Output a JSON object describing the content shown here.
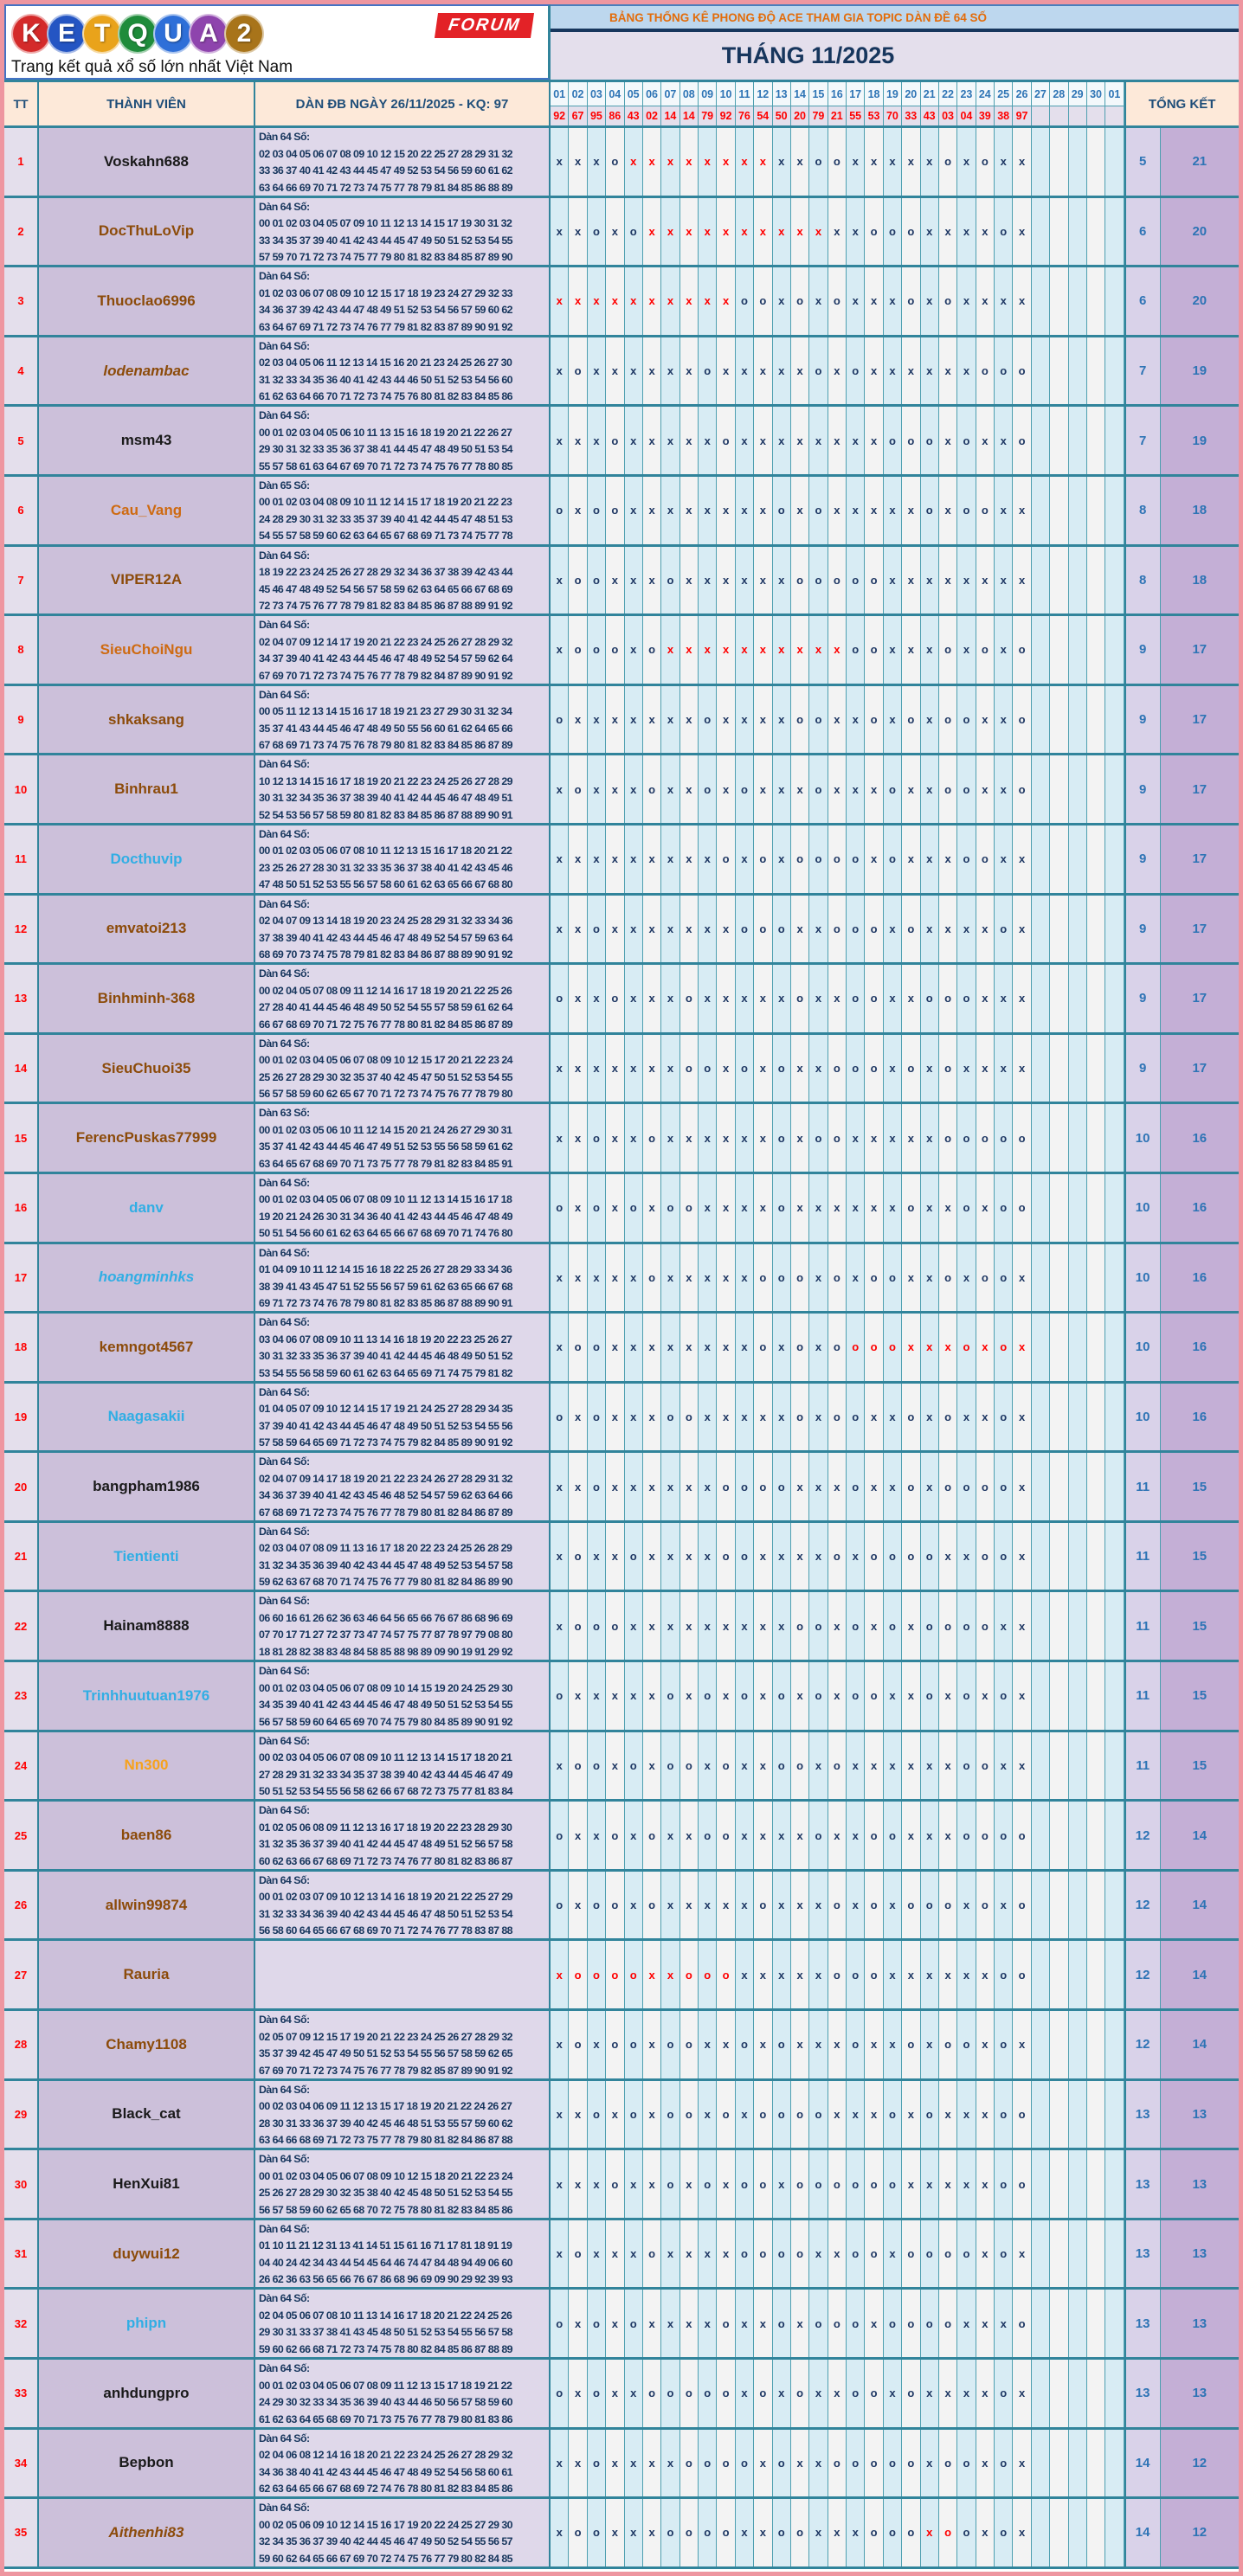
{
  "logo": {
    "letters": [
      {
        "ch": "K",
        "color": "#d42a2a"
      },
      {
        "ch": "E",
        "color": "#2455c3"
      },
      {
        "ch": "T",
        "color": "#e9a31b"
      },
      {
        "ch": "Q",
        "color": "#1f8c3b"
      },
      {
        "ch": "U",
        "color": "#2e6fd8"
      },
      {
        "ch": "A",
        "color": "#8e44ad"
      },
      {
        "ch": "2",
        "color": "#a8741a"
      }
    ],
    "forum_label": "FORUM",
    "tagline": "Trang kết quả xổ số lớn nhất Việt Nam"
  },
  "banner": {
    "title": "BẢNG THỐNG KÊ PHONG ĐỘ ACE THAM GIA TOPIC DÀN ĐỀ 64 SỐ",
    "month": "THÁNG 11/2025"
  },
  "table": {
    "tt_header": "TT",
    "member_header": "THÀNH VIÊN",
    "dan_header": "DÀN ĐB NGÀY 26/11/2025 - KQ: 97",
    "total_header": "TỔNG KẾT",
    "day_columns": [
      "01",
      "02",
      "03",
      "04",
      "05",
      "06",
      "07",
      "08",
      "09",
      "10",
      "11",
      "12",
      "13",
      "14",
      "15",
      "16",
      "17",
      "18",
      "19",
      "20",
      "21",
      "22",
      "23",
      "24",
      "25",
      "26",
      "27",
      "28",
      "29",
      "30",
      "01"
    ],
    "day_results": [
      "92",
      "67",
      "95",
      "86",
      "43",
      "02",
      "14",
      "14",
      "79",
      "92",
      "76",
      "54",
      "50",
      "20",
      "79",
      "21",
      "55",
      "53",
      "70",
      "33",
      "43",
      "03",
      "04",
      "39",
      "38",
      "97",
      "",
      "",
      "",
      "",
      ""
    ],
    "rows": [
      {
        "tt": "1",
        "name": "Voskahn688",
        "style": "black",
        "italic": false,
        "dan_title": "Dàn 64 Số:",
        "lines": [
          "02 03 04 05 06 07 08 09 10 12 15 20 22 25 27 28 29 31 32",
          "33 36 37 40 41 42 43 44 45 47 49 52 53 54 56 59 60 61 62",
          "63 64 66 69 70 71 72 73 74 75 77 78 79 81 84 85 86 88 89",
          "90 94 95 96 97 98 99"
        ],
        "marks": "xxxoXXXXXXXXxxooxxxxxoxoxx",
        "miss": "5",
        "hit": "21"
      },
      {
        "tt": "2",
        "name": "DocThuLoVip",
        "style": "brown",
        "italic": false,
        "dan_title": "Dàn 64 Số:",
        "lines": [
          "00 01 02 03 04 05 07 09 10 11 12 13 14 15 17 19 30 31 32",
          "33 34 35 37 39 40 41 42 43 44 45 47 49 50 51 52 53 54 55",
          "57 59 70 71 72 73 74 75 77 79 80 81 82 83 84 85 87 89 90",
          "91 92 93 94 95 97 99"
        ],
        "marks": "xxoxoXXXXXXXXXXxxoooxxxxox",
        "miss": "6",
        "hit": "20"
      },
      {
        "tt": "3",
        "name": "Thuoclao6996",
        "style": "brown",
        "italic": false,
        "dan_title": "Dàn 64 Số:",
        "lines": [
          "01 02 03 06 07 08 09 10 12 15 17 18 19 23 24 27 29 32 33",
          "34 36 37 39 42 43 44 47 48 49 51 52 53 54 56 57 59 60 62",
          "63 64 67 69 71 72 73 74 76 77 79 81 82 83 87 89 90 91 92",
          "93 94 95 96 97 98 99"
        ],
        "marks": "XXXXXXXXXXooxoxoxxxoxoxxxx",
        "miss": "6",
        "hit": "20"
      },
      {
        "tt": "4",
        "name": "lodenambac",
        "style": "brown",
        "italic": true,
        "dan_title": "Dàn 64 Số:",
        "lines": [
          "02 03 04 05 06 11 12 13 14 15 16 20 21 23 24 25 26 27 30",
          "31 32 33 34 35 36 40 41 42 43 44 46 50 51 52 53 54 56 60",
          "61 62 63 64 66 70 71 72 73 74 75 76 80 81 82 83 84 85 86"
        ],
        "marks": "xoxxxxxxoxxxxxoxoxxxxxxooo",
        "miss": "7",
        "hit": "19"
      },
      {
        "tt": "5",
        "name": "msm43",
        "style": "black",
        "italic": false,
        "dan_title": "Dàn 64 Số:",
        "lines": [
          "00 01 02 03 04 05 06 10 11 13 15 16 18 19 20 21 22 26 27",
          "29 30 31 32 33 35 36 37 38 41 44 45 47 48 49 50 51 53 54",
          "55 57 58 61 63 64 67 69 70 71 72 73 74 75 76 77 78 80 85"
        ],
        "marks": "xxxoxxxxxoxxxxxxxxoooxoxxo",
        "miss": "7",
        "hit": "19"
      },
      {
        "tt": "6",
        "name": "Cau_Vang",
        "style": "orange",
        "italic": false,
        "dan_title": "Dàn 65 Số:",
        "lines": [
          "00 01 02 03 04 08 09 10 11 12 14 15 17 18 19 20 21 22 23",
          "24 28 29 30 31 32 33 35 37 39 40 41 42 44 45 47 48 51 53",
          "54 55 57 58 59 60 62 63 64 65 67 68 69 71 73 74 75 77 78"
        ],
        "marks": "oxooxxxxxxxxoxoxxxxxoxooxx",
        "miss": "8",
        "hit": "18"
      },
      {
        "tt": "7",
        "name": "VIPER12A",
        "style": "brown",
        "italic": false,
        "dan_title": "Dàn 64 Số:",
        "lines": [
          "18 19 22 23 24 25 26 27 28 29 32 34 36 37 38 39 42 43 44",
          "45 46 47 48 49 52 54 56 57 58 59 62 63 64 65 66 67 68 69",
          "72 73 74 75 76 77 78 79 81 82 83 84 85 86 87 88 89 91 92"
        ],
        "marks": "xooxxxoxxxxxxoooooxxxxxxxx",
        "miss": "8",
        "hit": "18"
      },
      {
        "tt": "8",
        "name": "SieuChoiNgu",
        "style": "orange",
        "italic": false,
        "dan_title": "Dàn 64 Số:",
        "lines": [
          "02 04 07 09 12 14 17 19 20 21 22 23 24 25 26 27 28 29 32",
          "34 37 39 40 41 42 43 44 45 46 47 48 49 52 54 57 59 62 64",
          "67 69 70 71 72 73 74 75 76 77 78 79 82 84 87 89 90 91 92"
        ],
        "marks": "xoooxoXXXXXXXXXXooxxxoxoxo",
        "miss": "9",
        "hit": "17"
      },
      {
        "tt": "9",
        "name": "shkaksang",
        "style": "brown",
        "italic": false,
        "dan_title": "Dàn 64 Số:",
        "lines": [
          "00 05 11 12 13 14 15 16 17 18 19 21 23 27 29 30 31 32 34",
          "35 37 41 43 44 45 46 47 48 49 50 55 56 60 61 62 64 65 66",
          "67 68 69 71 73 74 75 76 78 79 80 81 82 83 84 85 86 87 89"
        ],
        "marks": "oxxxxxxxoxxxxooxxoxoxooxxo",
        "miss": "9",
        "hit": "17"
      },
      {
        "tt": "10",
        "name": "Binhrau1",
        "style": "brown",
        "italic": false,
        "dan_title": "Dàn 64 Số:",
        "lines": [
          "10 12 13 14 15 16 17 18 19 20 21 22 23 24 25 26 27 28 29",
          "30 31 32 34 35 36 37 38 39 40 41 42 44 45 46 47 48 49 51",
          "52 54 53 56 57 58 59 80 81 82 83 84 85 86 87 88 89 90 91"
        ],
        "marks": "xoxxxoxxoxoxxxoxxxoxxooxxo",
        "miss": "9",
        "hit": "17"
      },
      {
        "tt": "11",
        "name": "Docthuvip",
        "style": "blue",
        "italic": false,
        "dan_title": "Dàn 64 Số:",
        "lines": [
          "00 01 02 03 05 06 07 08 10 11 12 13 15 16 17 18 20 21 22",
          "23 25 26 27 28 30 31 32 33 35 36 37 38 40 41 42 43 45 46",
          "47 48 50 51 52 53 55 56 57 58 60 61 62 63 65 66 67 68 80"
        ],
        "marks": "xxxxxxxxxoxoxooooxoxxxooxx",
        "miss": "9",
        "hit": "17"
      },
      {
        "tt": "12",
        "name": "emvatoi213",
        "style": "brown",
        "italic": false,
        "dan_title": "Dàn 64 Số:",
        "lines": [
          "02 04 07 09 13 14 18 19 20 23 24 25 28 29 31 32 33 34 36",
          "37 38 39 40 41 42 43 44 45 46 47 48 49 52 54 57 59 63 64",
          "68 69 70 73 74 75 78 79 81 82 83 84 86 87 88 89 90 91 92"
        ],
        "marks": "xxoxxxxxxxoooxxoooxoxxxxox",
        "miss": "9",
        "hit": "17"
      },
      {
        "tt": "13",
        "name": "Binhminh-368",
        "style": "brown",
        "italic": false,
        "dan_title": "Dàn 64 Số:",
        "lines": [
          "00 02 04 05 07 08 09 11 12 14 16 17 18 19 20 21 22 25 26",
          "27 28 40 41 44 45 46 48 49 50 52 54 55 57 58 59 61 62 64",
          "66 67 68 69 70 71 72 75 76 77 78 80 81 82 84 85 86 87 89"
        ],
        "marks": "oxxoxxxoxxxxxoxxooxxoooxxx",
        "miss": "9",
        "hit": "17"
      },
      {
        "tt": "14",
        "name": "SieuChuoi35",
        "style": "brown",
        "italic": false,
        "dan_title": "Dàn 64 Số:",
        "lines": [
          "00 01 02 03 04 05 06 07 08 09 10 12 15 17 20 21 22 23 24",
          "25 26 27 28 29 30 32 35 37 40 42 45 47 50 51 52 53 54 55",
          "56 57 58 59 60 62 65 67 70 71 72 73 74 75 76 77 78 79 80"
        ],
        "marks": "xxxxxxxooxoxoxxoooxoxoxxxx",
        "miss": "9",
        "hit": "17"
      },
      {
        "tt": "15",
        "name": "FerencPuskas77999",
        "style": "brown",
        "italic": false,
        "dan_title": "Dàn 63 Số:",
        "lines": [
          "00 01 02 03 05 06 10 11 12 14 15 20 21 24 26 27 29 30 31",
          "35 37 41 42 43 44 45 46 47 49 51 52 53 55 56 58 59 61 62",
          "63 64 65 67 68 69 70 71 73 75 77 78 79 81 82 83 84 85 91"
        ],
        "marks": "xxoxxoxxxxxxoxooxxxxxooooo",
        "miss": "10",
        "hit": "16"
      },
      {
        "tt": "16",
        "name": "danv",
        "style": "blue",
        "italic": false,
        "dan_title": "Dàn 64 Số:",
        "lines": [
          "00 01 02 03 04 05 06 07 08 09 10 11 12 13 14 15 16 17 18",
          "19 20 21 24 26 30 31 34 36 40 41 42 43 44 45 46 47 48 49",
          "50 51 54 56 60 61 62 63 64 65 66 67 68 69 70 71 74 76 80"
        ],
        "marks": "oxoxoxooxxxxoxxxxxxoxxoxoo",
        "miss": "10",
        "hit": "16"
      },
      {
        "tt": "17",
        "name": "hoangminhks",
        "style": "blue",
        "italic": true,
        "dan_title": "Dàn 64 Số:",
        "lines": [
          "01 04 09 10 11 12 14 15 16 18 22 25 26 27 28 29 33 34 36",
          "38 39 41 43 45 47 51 52 55 56 57 59 61 62 63 65 66 67 68",
          "69 71 72 73 74 76 78 79 80 81 82 83 85 86 87 88 89 90 91"
        ],
        "marks": "xxxxxoxxxxxoooxoxooxxoxoox",
        "miss": "10",
        "hit": "16"
      },
      {
        "tt": "18",
        "name": "kemngot4567",
        "style": "brown",
        "italic": false,
        "dan_title": "Dàn 64 Số:",
        "lines": [
          "03 04 06 07 08 09 10 11 13 14 16 18 19 20 22 23 25 26 27",
          "30 31 32 33 35 36 37 39 40 41 42 44 45 46 48 49 50 51 52",
          "53 54 55 56 58 59 60 61 62 63 64 65 69 71 74 75 79 81 82"
        ],
        "marks": "xooxxxxxxxxoxoxoOOOXXXOXOX",
        "miss": "10",
        "hit": "16"
      },
      {
        "tt": "19",
        "name": "Naagasakii",
        "style": "blue",
        "italic": false,
        "dan_title": "Dàn 64 Số:",
        "lines": [
          "01 04 05 07 09 10 12 14 15 17 19 21 24 25 27 28 29 34 35",
          "37 39 40 41 42 43 44 45 46 47 48 49 50 51 52 53 54 55 56",
          "57 58 59 64 65 69 71 72 73 74 75 79 82 84 85 89 90 91 92"
        ],
        "marks": "oxoxxxooxxxxxoxooxxoxoxxox",
        "miss": "10",
        "hit": "16"
      },
      {
        "tt": "20",
        "name": "bangpham1986",
        "style": "black",
        "italic": false,
        "dan_title": "Dàn 64 Số:",
        "lines": [
          "02 04 07 09 14 17 18 19 20 21 22 23 24 26 27 28 29 31 32",
          "34 36 37 39 40 41 42 43 45 46 48 52 54 57 59 62 63 64 66",
          "67 68 69 71 72 73 74 75 76 77 78 79 80 81 82 84 86 87 89"
        ],
        "marks": "xxoxxxxxxooooxxxoxxoxoooox",
        "miss": "11",
        "hit": "15"
      },
      {
        "tt": "21",
        "name": "Tientienti",
        "style": "blue",
        "italic": false,
        "dan_title": "Dàn 64 Số:",
        "lines": [
          "02 03 04 07 08 09 11 13 16 17 18 20 22 23 24 25 26 28 29",
          "31 32 34 35 36 39 40 42 43 44 45 47 48 49 52 53 54 57 58",
          "59 62 63 67 68 70 71 74 75 76 77 79 80 81 82 84 86 89 90"
        ],
        "marks": "xoxxoxxxxooxxxxoxooooxxoox",
        "miss": "11",
        "hit": "15"
      },
      {
        "tt": "22",
        "name": "Hainam8888",
        "style": "black",
        "italic": false,
        "dan_title": "Dàn 64 Số:",
        "lines": [
          "06 60 16 61 26 62 36 63 46 64 56 65 66 76 67 86 68 96 69",
          "07 70 17 71 27 72 37 73 47 74 57 75 77 87 78 97 79 08 80",
          "18 81 28 82 38 83 48 84 58 85 88 98 89 09 90 19 91 29 92"
        ],
        "marks": "xoooxxxxxxxxxooxoxoxooooxx",
        "miss": "11",
        "hit": "15"
      },
      {
        "tt": "23",
        "name": "Trinhhuutuan1976",
        "style": "blue",
        "italic": false,
        "dan_title": "Dàn 64 Số:",
        "lines": [
          "00 01 02 03 04 05 06 07 08 09 10 14 15 19 20 24 25 29 30",
          "34 35 39 40 41 42 43 44 45 46 47 48 49 50 51 52 53 54 55",
          "56 57 58 59 60 64 65 69 70 74 75 79 80 84 85 89 90 91 92"
        ],
        "marks": "oxxxxxoxoxoxoxoxooxxoxoxox",
        "miss": "11",
        "hit": "15"
      },
      {
        "tt": "24",
        "name": "Nn300",
        "style": "gold",
        "italic": false,
        "dan_title": "Dàn 64 Số:",
        "lines": [
          "00 02 03 04 05 06 07 08 09 10 11 12 13 14 15 17 18 20 21",
          "27 28 29 31 32 33 34 35 37 38 39 40 42 43 44 45 46 47 49",
          "50 51 52 53 54 55 56 58 62 66 67 68 72 73 75 77 81 83 84"
        ],
        "marks": "xooxoxooxoxxooxoxxxxxxooxx",
        "miss": "11",
        "hit": "15"
      },
      {
        "tt": "25",
        "name": "baen86",
        "style": "brown",
        "italic": false,
        "dan_title": "Dàn 64 Số:",
        "lines": [
          "01 02 05 06 08 09 11 12 13 16 17 18 19 20 22 23 28 29 30",
          "31 32 35 36 37 39 40 41 42 44 45 47 48 49 51 52 56 57 58",
          "60 62 63 66 67 68 69 71 72 73 74 76 77 80 81 82 83 86 87"
        ],
        "marks": "oxxoxoxxooxxxxoxxooxxxoooo",
        "miss": "12",
        "hit": "14"
      },
      {
        "tt": "26",
        "name": "allwin99874",
        "style": "brown",
        "italic": false,
        "dan_title": "Dàn 64 Số:",
        "lines": [
          "00 01 02 03 07 09 10 12 13 14 16 18 19 20 21 22 25 27 29",
          "31 32 33 34 36 39 40 42 43 44 45 46 47 48 50 51 52 53 54",
          "56 58 60 64 65 66 67 68 69 70 71 72 74 76 77 78 83 87 88"
        ],
        "marks": "oxooxoxxxxxoxxxoxoxoooxoxo",
        "miss": "12",
        "hit": "14"
      },
      {
        "tt": "27",
        "name": "Rauria",
        "style": "brown",
        "italic": false,
        "dan_title": "",
        "lines": [],
        "marks": "XOOOOXXOOOxxxxxoooxxxxxxoo",
        "miss": "12",
        "hit": "14"
      },
      {
        "tt": "28",
        "name": "Chamy1108",
        "style": "brown",
        "italic": false,
        "dan_title": "Dàn 64 Số:",
        "lines": [
          "02 05 07 09 12 15 17 19 20 21 22 23 24 25 26 27 28 29 32",
          "35 37 39 42 45 47 49 50 51 52 53 54 55 56 57 58 59 62 65",
          "67 69 70 71 72 73 74 75 76 77 78 79 82 85 87 89 90 91 92"
        ],
        "marks": "xoxooxooxxoxoxxxoxxoxooxox",
        "miss": "12",
        "hit": "14"
      },
      {
        "tt": "29",
        "name": "Black_cat",
        "style": "black",
        "italic": false,
        "dan_title": "Dàn 64 Số:",
        "lines": [
          "00 02 03 04 06 09 11 12 13 15 17 18 19 20 21 22 24 26 27",
          "28 30 31 33 36 37 39 40 42 45 46 48 51 53 55 57 59 60 62",
          "63 64 66 68 69 71 72 73 75 77 78 79 80 81 82 84 86 87 88"
        ],
        "marks": "xxoxoxooxoxooooxxxoxoxxxoo",
        "miss": "13",
        "hit": "13"
      },
      {
        "tt": "30",
        "name": "HenXui81",
        "style": "black",
        "italic": false,
        "dan_title": "Dàn 64 Số:",
        "lines": [
          "00 01 02 03 04 05 06 07 08 09 10 12 15 18 20 21 22 23 24",
          "25 26 27 28 29 30 32 35 38 40 42 45 48 50 51 52 53 54 55",
          "56 57 58 59 60 62 65 68 70 72 75 78 80 81 82 83 84 85 86"
        ],
        "marks": "xxxoxxoxoxooxooooooxxxxxoo",
        "miss": "13",
        "hit": "13"
      },
      {
        "tt": "31",
        "name": "duywui12",
        "style": "brown",
        "italic": false,
        "dan_title": "Dàn 64 Số:",
        "lines": [
          "01 10 11 21 12 31 13 41 14 51 15 61 16 71 17 81 18 91 19",
          "04 40 24 42 34 43 44 54 45 64 46 74 47 84 48 94 49 06 60",
          "26 62 36 63 56 65 66 76 67 86 68 96 69 09 90 29 92 39 93"
        ],
        "marks": "xoxxxoxxxxooooxxooxooooxox",
        "miss": "13",
        "hit": "13"
      },
      {
        "tt": "32",
        "name": "phipn",
        "style": "blue",
        "italic": false,
        "dan_title": "Dàn 64 Số:",
        "lines": [
          "02 04 05 06 07 08 10 11 13 14 16 17 18 20 21 22 24 25 26",
          "29 30 31 33 37 38 41 43 45 48 50 51 52 53 54 55 56 57 58",
          "59 60 62 66 68 71 72 73 74 75 78 80 82 84 85 86 87 88 89"
        ],
        "marks": "oxoxoxxxxoxxoxoooxooooxxxo",
        "miss": "13",
        "hit": "13"
      },
      {
        "tt": "33",
        "name": "anhdungpro",
        "style": "black",
        "italic": false,
        "dan_title": "Dàn 64 Số:",
        "lines": [
          "00 01 02 03 04 05 06 07 08 09 11 12 13 15 17 18 19 21 22",
          "24 29 30 32 33 34 35 36 39 40 43 44 46 50 56 57 58 59 60",
          "61 62 63 64 65 68 69 70 71 73 75 76 77 78 79 80 81 83 86"
        ],
        "marks": "oxoxxoooooxoxoxxooxoxxxxox",
        "miss": "13",
        "hit": "13"
      },
      {
        "tt": "34",
        "name": "Bepbon",
        "style": "black",
        "italic": false,
        "dan_title": "Dàn 64 Số:",
        "lines": [
          "02 04 06 08 12 14 16 18 20 21 22 23 24 25 26 27 28 29 32",
          "34 36 38 40 41 42 43 44 45 46 47 48 49 52 54 56 58 60 61",
          "62 63 64 65 66 67 68 69 72 74 76 78 80 81 82 83 84 85 86"
        ],
        "marks": "xxoxxxxooooxoxxoooooxooxox",
        "miss": "14",
        "hit": "12"
      },
      {
        "tt": "35",
        "name": "Aithenhi83",
        "style": "brown",
        "italic": true,
        "dan_title": "Dàn 64 Số:",
        "lines": [
          "00 02 05 06 09 10 12 14 15 16 17 19 20 22 24 25 27 29 30",
          "32 34 35 36 37 39 40 42 44 45 46 47 49 50 52 54 55 56 57",
          "59 60 62 64 65 66 67 69 70 72 74 75 76 77 79 80 82 84 85"
        ],
        "marks": "xooxxxooooxxooxxxoooXOoxox",
        "miss": "14",
        "hit": "12"
      }
    ]
  }
}
